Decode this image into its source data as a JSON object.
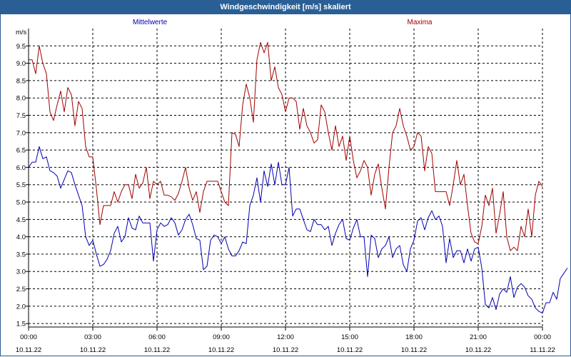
{
  "window": {
    "title": "Windgeschwindigkeit [m/s] skaliert"
  },
  "chart_data": {
    "type": "line",
    "title": "Windgeschwindigkeit [m/s] skaliert",
    "ylabel": "m/s",
    "ylim": [
      1.4,
      10.0
    ],
    "yticks": [
      "1.5",
      "2.0",
      "2.5",
      "3.0",
      "3.5",
      "4.0",
      "4.5",
      "5.0",
      "5.5",
      "6.0",
      "6.5",
      "7.0",
      "7.5",
      "8.0",
      "8.5",
      "9.0",
      "9.5"
    ],
    "yvalues": [
      1.5,
      2.0,
      2.5,
      3.0,
      3.5,
      4.0,
      4.5,
      5.0,
      5.5,
      6.0,
      6.5,
      7.0,
      7.5,
      8.0,
      8.5,
      9.0,
      9.5
    ],
    "xlim": [
      0,
      24
    ],
    "xticks": [
      {
        "h": 0,
        "time": "00:00",
        "date": "10.11.22"
      },
      {
        "h": 3,
        "time": "03:00",
        "date": "10.11.22"
      },
      {
        "h": 6,
        "time": "06:00",
        "date": "10.11.22"
      },
      {
        "h": 9,
        "time": "09:00",
        "date": "10.11.22"
      },
      {
        "h": 12,
        "time": "12:00",
        "date": "10.11.22"
      },
      {
        "h": 15,
        "time": "15:00",
        "date": "10.11.22"
      },
      {
        "h": 18,
        "time": "18:00",
        "date": "10.11.22"
      },
      {
        "h": 21,
        "time": "21:00",
        "date": "10.11.22"
      },
      {
        "h": 24,
        "time": "00:00",
        "date": "11.11.22"
      }
    ],
    "grid": true,
    "step_minutes": 10,
    "series": [
      {
        "name": "Mittelwerte",
        "color": "#0000b0",
        "values": [
          6.0,
          6.15,
          6.15,
          6.6,
          6.25,
          6.3,
          5.9,
          5.85,
          5.75,
          5.4,
          5.65,
          5.9,
          5.85,
          5.5,
          5.2,
          4.9,
          4.0,
          3.75,
          3.9,
          3.5,
          3.15,
          3.2,
          3.35,
          3.6,
          4.1,
          4.3,
          3.85,
          4.0,
          4.55,
          4.25,
          4.2,
          4.6,
          4.4,
          4.4,
          4.4,
          3.3,
          4.2,
          4.4,
          4.3,
          4.35,
          4.55,
          4.4,
          4.05,
          4.2,
          4.5,
          4.65,
          4.35,
          3.95,
          3.9,
          3.05,
          3.15,
          3.9,
          4.05,
          4.0,
          3.8,
          4.0,
          3.65,
          3.45,
          3.45,
          3.6,
          3.85,
          3.8,
          4.9,
          5.2,
          5.7,
          5.0,
          5.9,
          5.45,
          6.1,
          5.5,
          6.15,
          5.5,
          5.5,
          6.0,
          4.6,
          4.8,
          4.8,
          4.5,
          4.2,
          4.15,
          4.5,
          4.35,
          4.35,
          4.2,
          4.3,
          3.75,
          4.1,
          4.35,
          4.5,
          3.95,
          3.9,
          4.25,
          4.5,
          4.0,
          4.0,
          2.85,
          4.05,
          3.95,
          3.4,
          3.65,
          3.75,
          4.0,
          3.4,
          3.65,
          3.75,
          3.2,
          3.0,
          3.65,
          3.9,
          4.45,
          4.55,
          4.2,
          4.55,
          4.75,
          4.5,
          4.6,
          4.3,
          3.25,
          3.95,
          3.4,
          3.6,
          3.6,
          3.25,
          3.65,
          3.3,
          3.65,
          3.7,
          3.1,
          2.05,
          1.95,
          2.25,
          1.9,
          2.35,
          2.5,
          2.4,
          2.85,
          2.25,
          2.55,
          2.65,
          2.55,
          2.3,
          2.2,
          1.95,
          1.85,
          1.8,
          2.1,
          2.1,
          2.4,
          2.2,
          2.8,
          2.95,
          3.1
        ]
      },
      {
        "name": "Maxima",
        "color": "#a00000",
        "values": [
          9.1,
          9.1,
          8.7,
          9.5,
          9.0,
          8.7,
          7.6,
          7.35,
          7.8,
          8.2,
          7.6,
          8.3,
          8.1,
          7.2,
          7.9,
          7.7,
          6.6,
          6.3,
          6.3,
          5.4,
          4.35,
          4.9,
          4.9,
          4.9,
          5.3,
          5.0,
          5.3,
          5.5,
          5.5,
          5.1,
          5.8,
          5.4,
          5.55,
          6.0,
          5.1,
          5.6,
          5.5,
          5.6,
          5.2,
          5.2,
          5.15,
          5.05,
          5.25,
          5.6,
          6.0,
          5.4,
          5.05,
          5.3,
          4.7,
          5.3,
          5.6,
          5.6,
          5.6,
          5.6,
          5.3,
          5.0,
          4.9,
          7.0,
          6.95,
          6.6,
          7.8,
          8.4,
          8.0,
          7.3,
          9.1,
          9.6,
          9.3,
          9.6,
          8.5,
          8.9,
          8.3,
          8.1,
          7.6,
          8.0,
          8.0,
          7.9,
          7.1,
          7.7,
          7.2,
          7.0,
          6.7,
          6.8,
          7.8,
          7.6,
          7.0,
          6.5,
          7.2,
          6.6,
          6.9,
          6.2,
          6.9,
          6.2,
          5.7,
          5.9,
          6.2,
          6.0,
          5.2,
          5.8,
          6.1,
          5.4,
          4.8,
          6.0,
          7.0,
          7.2,
          7.7,
          7.2,
          6.9,
          6.5,
          6.6,
          7.0,
          6.9,
          5.9,
          6.6,
          6.4,
          5.3,
          5.3,
          5.3,
          5.3,
          4.9,
          5.5,
          6.2,
          5.5,
          5.8,
          4.9,
          4.1,
          3.85,
          3.8,
          4.3,
          5.2,
          4.9,
          5.4,
          4.1,
          4.65,
          5.3,
          4.0,
          3.6,
          3.7,
          3.6,
          4.3,
          4.0,
          4.8,
          4.0,
          5.2,
          5.6,
          5.45
        ]
      }
    ]
  }
}
